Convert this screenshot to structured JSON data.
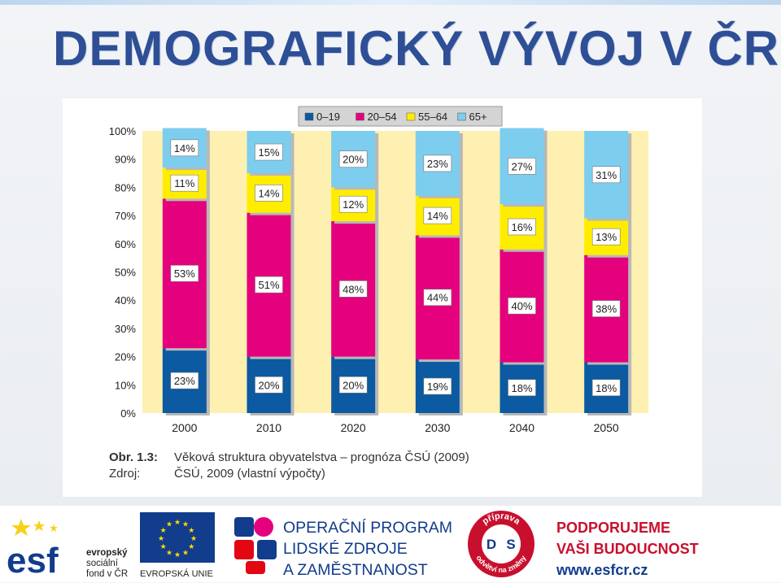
{
  "slide": {
    "title": "DEMOGRAFICKÝ VÝVOJ V ČR"
  },
  "chart_data": {
    "type": "bar",
    "stacked": true,
    "categories": [
      "2000",
      "2010",
      "2020",
      "2030",
      "2040",
      "2050"
    ],
    "series": [
      {
        "name": "0–19",
        "values": [
          23,
          20,
          20,
          19,
          18,
          18
        ],
        "color": "#0b5aa2"
      },
      {
        "name": "20–54",
        "values": [
          53,
          51,
          48,
          44,
          40,
          38
        ],
        "color": "#e5007e"
      },
      {
        "name": "55–64",
        "values": [
          11,
          14,
          12,
          14,
          16,
          13
        ],
        "color": "#ffed00"
      },
      {
        "name": "65+",
        "values": [
          14,
          15,
          20,
          23,
          27,
          31
        ],
        "color": "#7dcdef"
      }
    ],
    "data_labels": [
      [
        "23%",
        "20%",
        "20%",
        "19%",
        "18%",
        "18%"
      ],
      [
        "53%",
        "51%",
        "48%",
        "44%",
        "40%",
        "38%"
      ],
      [
        "11%",
        "14%",
        "12%",
        "14%",
        "16%",
        "13%"
      ],
      [
        "14%",
        "15%",
        "20%",
        "23%",
        "27%",
        "31%"
      ]
    ],
    "y_ticks": [
      "0%",
      "10%",
      "20%",
      "30%",
      "40%",
      "50%",
      "60%",
      "70%",
      "80%",
      "90%",
      "100%"
    ],
    "ylim": [
      0,
      100
    ],
    "legend_position": "top",
    "plot_background": "#fdf0b0",
    "grid": false,
    "caption": {
      "fig_label": "Obr. 1.3:",
      "fig_text": "Věková struktura obyvatelstva – prognóza ČSÚ (2009)",
      "src_label": "Zdroj:",
      "src_text": "ČSÚ, 2009 (vlastní výpočty)"
    }
  },
  "footer": {
    "esf": {
      "line1": "evropský",
      "line2": "sociální",
      "line3": "fond v ČR"
    },
    "eu_label": "EVROPSKÁ UNIE",
    "op": {
      "line1": "OPERAČNÍ PROGRAM",
      "line2": "LIDSKÉ ZDROJE",
      "line3": "A ZAMĚSTNANOST"
    },
    "ds": {
      "top": "příprava",
      "bottom": "odvětví na změny",
      "left": "D",
      "right": "S"
    },
    "support": {
      "line1": "PODPORUJEME",
      "line2": "VAŠI BUDOUCNOST",
      "url": "www.esfcr.cz"
    }
  }
}
